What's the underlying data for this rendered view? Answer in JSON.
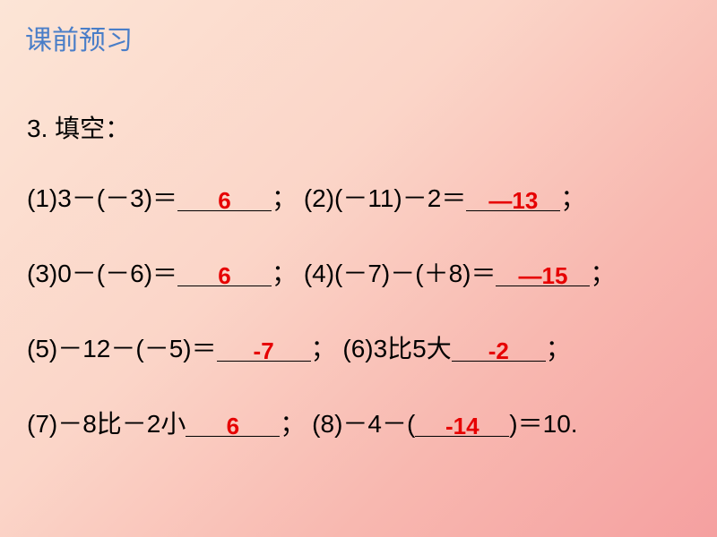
{
  "heading": "课前预习",
  "stem": "3. 填空：",
  "problems": {
    "p1": {
      "label": "(1)3－(－3)＝",
      "answer": "6",
      "trail": "；"
    },
    "p2": {
      "label": "(2)(－11)－2＝",
      "answer": "—13",
      "trail": "；"
    },
    "p3": {
      "label": "(3)0－(－6)＝",
      "answer": "6",
      "trail": "；"
    },
    "p4": {
      "label": "(4)(－7)－(＋8)＝",
      "answer": "—15",
      "trail": "；"
    },
    "p5": {
      "label": "(5)－12－(－5)＝",
      "answer": "-7",
      "trail": "；"
    },
    "p6": {
      "label": "(6)3比5大",
      "answer": "-2",
      "trail": "；"
    },
    "p7": {
      "label": "(7)－8比－2小",
      "answer": "6",
      "trail": "；"
    },
    "p8": {
      "label": "(8)－4－(",
      "answer": "-14",
      "trail": ")＝10."
    }
  },
  "style": {
    "heading_color": "#4a7ec8",
    "answer_color": "#e60000",
    "body_w": 800,
    "body_h": 600,
    "base_fontsize": 28
  }
}
